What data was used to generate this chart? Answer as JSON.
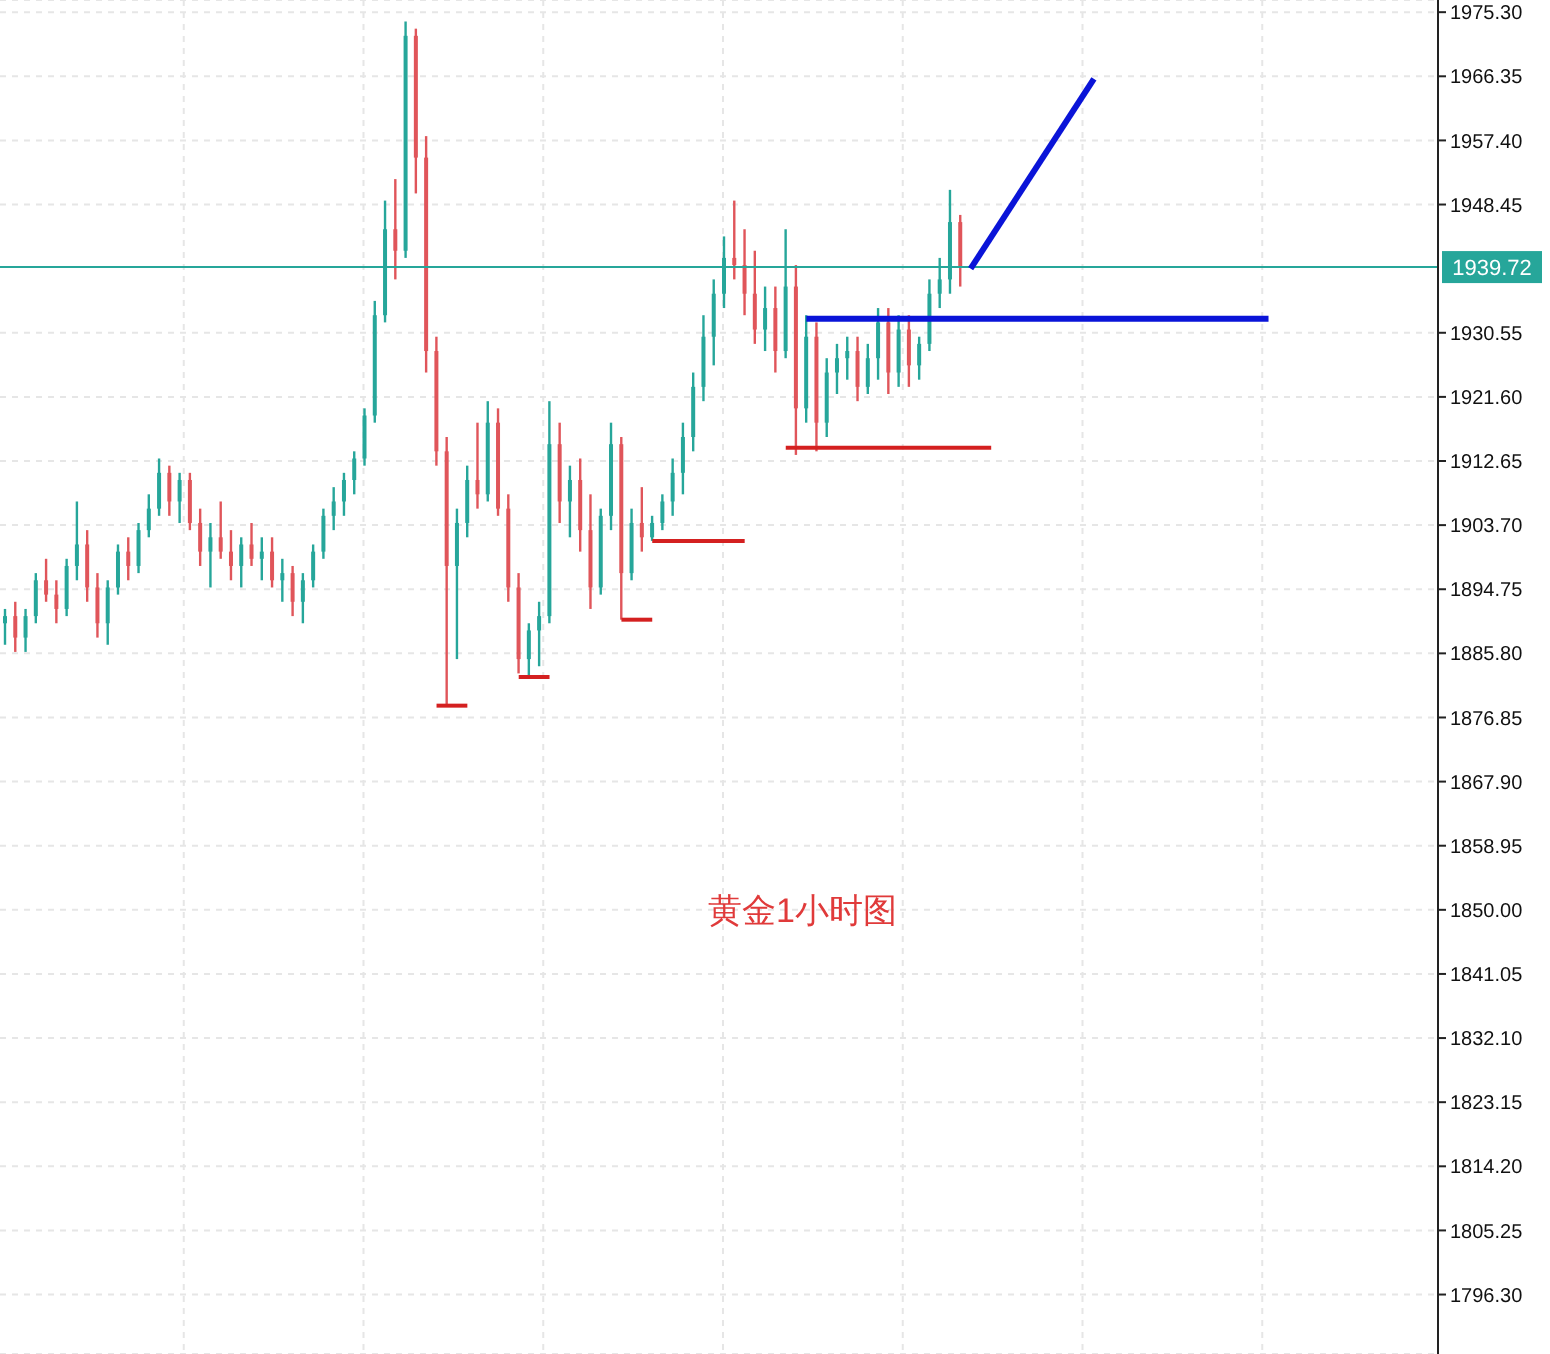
{
  "chart_data": {
    "type": "candlestick",
    "annotations": [
      "黄金1小时图"
    ],
    "categories": [
      null,
      null,
      null,
      null,
      null,
      null,
      null,
      null,
      null,
      null,
      null,
      null,
      null,
      null,
      null,
      null,
      null,
      null,
      null,
      null,
      null,
      null,
      null,
      null,
      null,
      null,
      null,
      null,
      null,
      null,
      null,
      null,
      null,
      null,
      null,
      null,
      null,
      null,
      null,
      null,
      null,
      null,
      null,
      null,
      null,
      null,
      null,
      null,
      null,
      null,
      null,
      null,
      null,
      null,
      null,
      null,
      null,
      null,
      null,
      null,
      null,
      null,
      null,
      null,
      null,
      null,
      null,
      null,
      null,
      null,
      null,
      null,
      null,
      null,
      null,
      null,
      null,
      null,
      null,
      null,
      null,
      null,
      null,
      null,
      null,
      null,
      null,
      null,
      null,
      null,
      null,
      null,
      null,
      null,
      null,
      null,
      null,
      null,
      null,
      null,
      null,
      null,
      null,
      null,
      null,
      null,
      null,
      null,
      null,
      null,
      null,
      null,
      null,
      null,
      null,
      null,
      null,
      null,
      null,
      null,
      null,
      null,
      null,
      null,
      null,
      null,
      null,
      null,
      null,
      null,
      null,
      null,
      null,
      null,
      null,
      null,
      null,
      null,
      null,
      null
    ],
    "ohlc": [
      [
        1890,
        1892,
        1887,
        1891
      ],
      [
        1891,
        1893,
        1886,
        1888
      ],
      [
        1888,
        1892,
        1886,
        1891
      ],
      [
        1891,
        1897,
        1890,
        1896
      ],
      [
        1896,
        1899,
        1893,
        1894
      ],
      [
        1894,
        1896,
        1890,
        1892
      ],
      [
        1892,
        1899,
        1891,
        1898
      ],
      [
        1898,
        1907,
        1896,
        1901
      ],
      [
        1901,
        1903,
        1893,
        1895
      ],
      [
        1895,
        1897,
        1888,
        1890
      ],
      [
        1890,
        1896,
        1887,
        1895
      ],
      [
        1895,
        1901,
        1894,
        1900
      ],
      [
        1900,
        1902,
        1896,
        1898
      ],
      [
        1898,
        1904,
        1897,
        1903
      ],
      [
        1903,
        1908,
        1902,
        1906
      ],
      [
        1906,
        1913,
        1905,
        1911
      ],
      [
        1911,
        1912,
        1905,
        1907
      ],
      [
        1907,
        1911,
        1904,
        1910
      ],
      [
        1910,
        1911,
        1903,
        1904
      ],
      [
        1904,
        1906,
        1898,
        1900
      ],
      [
        1900,
        1904,
        1895,
        1902
      ],
      [
        1902,
        1907,
        1899,
        1900
      ],
      [
        1900,
        1903,
        1896,
        1898
      ],
      [
        1898,
        1902,
        1895,
        1901
      ],
      [
        1901,
        1904,
        1898,
        1899
      ],
      [
        1899,
        1902,
        1896,
        1900
      ],
      [
        1900,
        1902,
        1895,
        1896
      ],
      [
        1896,
        1899,
        1893,
        1897
      ],
      [
        1897,
        1898,
        1891,
        1893
      ],
      [
        1893,
        1897,
        1890,
        1896
      ],
      [
        1896,
        1901,
        1895,
        1900
      ],
      [
        1900,
        1906,
        1899,
        1905
      ],
      [
        1905,
        1909,
        1903,
        1907
      ],
      [
        1907,
        1911,
        1905,
        1910
      ],
      [
        1910,
        1914,
        1908,
        1913
      ],
      [
        1913,
        1920,
        1912,
        1919
      ],
      [
        1919,
        1935,
        1918,
        1933
      ],
      [
        1933,
        1949,
        1932,
        1945
      ],
      [
        1945,
        1952,
        1938,
        1942
      ],
      [
        1942,
        1974,
        1941,
        1972
      ],
      [
        1972,
        1973,
        1950,
        1955
      ],
      [
        1955,
        1958,
        1925,
        1928
      ],
      [
        1928,
        1930,
        1912,
        1914
      ],
      [
        1914,
        1916,
        1878.5,
        1898
      ],
      [
        1898,
        1906,
        1885,
        1904
      ],
      [
        1904,
        1912,
        1902,
        1910
      ],
      [
        1910,
        1918,
        1906,
        1908
      ],
      [
        1908,
        1921,
        1907,
        1918
      ],
      [
        1918,
        1920,
        1905,
        1906
      ],
      [
        1906,
        1908,
        1893,
        1895
      ],
      [
        1895,
        1897,
        1883,
        1885
      ],
      [
        1885,
        1890,
        1882.5,
        1889
      ],
      [
        1889,
        1893,
        1884,
        1891
      ],
      [
        1891,
        1921,
        1890,
        1915
      ],
      [
        1915,
        1918,
        1904,
        1907
      ],
      [
        1907,
        1912,
        1902,
        1910
      ],
      [
        1910,
        1913,
        1900,
        1903
      ],
      [
        1903,
        1908,
        1892,
        1895
      ],
      [
        1895,
        1906,
        1894,
        1905
      ],
      [
        1905,
        1918,
        1903,
        1915
      ],
      [
        1915,
        1916,
        1890.5,
        1897
      ],
      [
        1897,
        1906,
        1896,
        1904
      ],
      [
        1904,
        1909,
        1900,
        1902
      ],
      [
        1902,
        1905,
        1901.5,
        1904
      ],
      [
        1904,
        1908,
        1903,
        1907
      ],
      [
        1907,
        1913,
        1905,
        1911
      ],
      [
        1911,
        1918,
        1908,
        1916
      ],
      [
        1916,
        1925,
        1914,
        1923
      ],
      [
        1923,
        1933,
        1921,
        1930
      ],
      [
        1930,
        1938,
        1926,
        1936
      ],
      [
        1936,
        1944,
        1934,
        1941
      ],
      [
        1941,
        1949,
        1938,
        1940
      ],
      [
        1940,
        1945,
        1933,
        1936
      ],
      [
        1936,
        1942,
        1929,
        1931
      ],
      [
        1931,
        1937,
        1928,
        1934
      ],
      [
        1934,
        1937,
        1925,
        1928
      ],
      [
        1928,
        1945,
        1927,
        1937
      ],
      [
        1937,
        1940,
        1913.5,
        1920
      ],
      [
        1920,
        1933,
        1918,
        1930
      ],
      [
        1930,
        1932,
        1914,
        1918
      ],
      [
        1918,
        1927,
        1916,
        1925
      ],
      [
        1925,
        1929,
        1922,
        1927
      ],
      [
        1927,
        1930,
        1924,
        1928
      ],
      [
        1928,
        1930,
        1921,
        1923
      ],
      [
        1923,
        1929,
        1922,
        1927
      ],
      [
        1927,
        1934,
        1924,
        1932
      ],
      [
        1932,
        1934,
        1922,
        1925
      ],
      [
        1925,
        1933,
        1923,
        1931
      ],
      [
        1931,
        1933,
        1923,
        1926
      ],
      [
        1926,
        1930,
        1924,
        1929
      ],
      [
        1929,
        1938,
        1928,
        1936
      ],
      [
        1936,
        1941,
        1934,
        1938
      ],
      [
        1938,
        1950.5,
        1936,
        1946
      ],
      [
        1946,
        1947,
        1937,
        1939.72
      ],
      null,
      null,
      null,
      null,
      null,
      null,
      null,
      null,
      null,
      null,
      null,
      null,
      null,
      null,
      null,
      null,
      null,
      null,
      null,
      null,
      null,
      null,
      null,
      null,
      null,
      null,
      null,
      null,
      null,
      null,
      null,
      null,
      null,
      null,
      null,
      null,
      null,
      null,
      null,
      null,
      null,
      null,
      null,
      null,
      null,
      null
    ],
    "series": [
      {
        "type": "line",
        "color": "#d42020",
        "values": [
          null,
          null,
          null,
          null,
          null,
          null,
          null,
          null,
          null,
          null,
          null,
          null,
          null,
          null,
          null,
          null,
          null,
          null,
          null,
          null,
          null,
          null,
          null,
          null,
          null,
          null,
          null,
          null,
          null,
          null,
          null,
          null,
          null,
          null,
          null,
          null,
          null,
          null,
          null,
          null,
          null,
          null,
          1878.5,
          1878.5,
          1878.5,
          1878.5,
          null,
          null,
          null,
          null,
          null,
          null,
          null,
          null,
          null,
          null,
          null,
          null,
          null,
          null,
          null,
          null,
          null,
          null,
          null,
          null,
          null,
          null,
          null,
          null,
          null,
          null,
          null,
          null,
          null,
          null,
          null,
          null,
          null,
          null,
          null,
          null,
          null,
          null,
          null,
          null,
          null,
          null,
          null,
          null,
          null,
          null,
          null,
          null,
          null,
          null,
          null,
          null,
          null,
          null,
          null,
          null,
          null,
          null,
          null,
          null,
          null,
          null,
          null,
          null,
          null,
          null,
          null,
          null,
          null,
          null,
          null,
          null,
          null,
          null,
          null,
          null,
          null,
          null,
          null,
          null,
          null,
          null,
          null,
          null,
          null,
          null,
          null,
          null,
          null,
          null,
          null,
          null,
          null,
          null
        ]
      },
      {
        "type": "line",
        "color": "#d42020",
        "values": [
          null,
          null,
          null,
          null,
          null,
          null,
          null,
          null,
          null,
          null,
          null,
          null,
          null,
          null,
          null,
          null,
          null,
          null,
          null,
          null,
          null,
          null,
          null,
          null,
          null,
          null,
          null,
          null,
          null,
          null,
          null,
          null,
          null,
          null,
          null,
          null,
          null,
          null,
          null,
          null,
          null,
          null,
          null,
          null,
          null,
          null,
          null,
          null,
          null,
          null,
          1882.5,
          1882.5,
          1882.5,
          1882.5,
          null,
          null,
          null,
          null,
          null,
          null,
          null,
          null,
          null,
          null,
          null,
          null,
          null,
          null,
          null,
          null,
          null,
          null,
          null,
          null,
          null,
          null,
          null,
          null,
          null,
          null,
          null,
          null,
          null,
          null,
          null,
          null,
          null,
          null,
          null,
          null,
          null,
          null,
          null,
          null,
          null,
          null,
          null,
          null,
          null,
          null,
          null,
          null,
          null,
          null,
          null,
          null,
          null,
          null,
          null,
          null,
          null,
          null,
          null,
          null,
          null,
          null,
          null,
          null,
          null,
          null,
          null,
          null,
          null,
          null,
          null,
          null,
          null,
          null,
          null,
          null,
          null,
          null,
          null,
          null,
          null,
          null,
          null,
          null,
          null,
          null
        ]
      },
      {
        "type": "line",
        "color": "#d42020",
        "values": [
          null,
          null,
          null,
          null,
          null,
          null,
          null,
          null,
          null,
          null,
          null,
          null,
          null,
          null,
          null,
          null,
          null,
          null,
          null,
          null,
          null,
          null,
          null,
          null,
          null,
          null,
          null,
          null,
          null,
          null,
          null,
          null,
          null,
          null,
          null,
          null,
          null,
          null,
          null,
          null,
          null,
          null,
          null,
          null,
          null,
          null,
          null,
          null,
          null,
          null,
          null,
          null,
          null,
          null,
          null,
          null,
          null,
          null,
          null,
          null,
          1890.5,
          1890.5,
          1890.5,
          1890.5,
          null,
          null,
          null,
          null,
          null,
          null,
          null,
          null,
          null,
          null,
          null,
          null,
          null,
          null,
          null,
          null,
          null,
          null,
          null,
          null,
          null,
          null,
          null,
          null,
          null,
          null,
          null,
          null,
          null,
          null,
          null,
          null,
          null,
          null,
          null,
          null,
          null,
          null,
          null,
          null,
          null,
          null,
          null,
          null,
          null,
          null,
          null,
          null,
          null,
          null,
          null,
          null,
          null,
          null,
          null,
          null,
          null,
          null,
          null,
          null,
          null,
          null,
          null,
          null,
          null,
          null,
          null,
          null,
          null,
          null,
          null,
          null,
          null,
          null,
          null,
          null
        ]
      },
      {
        "type": "line",
        "color": "#d42020",
        "values": [
          null,
          null,
          null,
          null,
          null,
          null,
          null,
          null,
          null,
          null,
          null,
          null,
          null,
          null,
          null,
          null,
          null,
          null,
          null,
          null,
          null,
          null,
          null,
          null,
          null,
          null,
          null,
          null,
          null,
          null,
          null,
          null,
          null,
          null,
          null,
          null,
          null,
          null,
          null,
          null,
          null,
          null,
          null,
          null,
          null,
          null,
          null,
          null,
          null,
          null,
          null,
          null,
          null,
          null,
          null,
          null,
          null,
          null,
          null,
          null,
          null,
          null,
          null,
          1901.5,
          1901.5,
          1901.5,
          1901.5,
          1901.5,
          1901.5,
          1901.5,
          1901.5,
          1901.5,
          1901.5,
          null,
          null,
          null,
          null,
          null,
          null,
          null,
          null,
          null,
          null,
          null,
          null,
          null,
          null,
          null,
          null,
          null,
          null,
          null,
          null,
          null,
          null,
          null,
          null,
          null,
          null,
          null,
          null,
          null,
          null,
          null,
          null,
          null,
          null,
          null,
          null,
          null,
          null,
          null,
          null,
          null,
          null,
          null,
          null,
          null,
          null,
          null,
          null,
          null,
          null,
          null,
          null,
          null,
          null,
          null,
          null,
          null,
          null,
          null,
          null,
          null,
          null,
          null,
          null,
          null,
          null,
          null
        ]
      },
      {
        "type": "line",
        "color": "#d42020",
        "values": [
          null,
          null,
          null,
          null,
          null,
          null,
          null,
          null,
          null,
          null,
          null,
          null,
          null,
          null,
          null,
          null,
          null,
          null,
          null,
          null,
          null,
          null,
          null,
          null,
          null,
          null,
          null,
          null,
          null,
          null,
          null,
          null,
          null,
          null,
          null,
          null,
          null,
          null,
          null,
          null,
          null,
          null,
          null,
          null,
          null,
          null,
          null,
          null,
          null,
          null,
          null,
          null,
          null,
          null,
          null,
          null,
          null,
          null,
          null,
          null,
          null,
          null,
          null,
          null,
          null,
          null,
          null,
          null,
          null,
          null,
          null,
          null,
          null,
          null,
          null,
          null,
          1914.5,
          1914.5,
          1914.5,
          1914.5,
          1914.5,
          1914.5,
          1914.5,
          1914.5,
          1914.5,
          1914.5,
          1914.5,
          1914.5,
          1914.5,
          1914.5,
          1914.5,
          1914.5,
          1914.5,
          1914.5,
          1914.5,
          1914.5,
          1914.5,
          null,
          null,
          null,
          null,
          null,
          null,
          null,
          null,
          null,
          null,
          null,
          null,
          null,
          null,
          null,
          null,
          null,
          null,
          null,
          null,
          null,
          null,
          null,
          null,
          null,
          null,
          null,
          null,
          null,
          null,
          null,
          null,
          null,
          null,
          null,
          null,
          null,
          null,
          null,
          null,
          null,
          null,
          null
        ]
      },
      {
        "type": "line",
        "color": "#0a14d8",
        "values": [
          null,
          null,
          null,
          null,
          null,
          null,
          null,
          null,
          null,
          null,
          null,
          null,
          null,
          null,
          null,
          null,
          null,
          null,
          null,
          null,
          null,
          null,
          null,
          null,
          null,
          null,
          null,
          null,
          null,
          null,
          null,
          null,
          null,
          null,
          null,
          null,
          null,
          null,
          null,
          null,
          null,
          null,
          null,
          null,
          null,
          null,
          null,
          null,
          null,
          null,
          null,
          null,
          null,
          null,
          null,
          null,
          null,
          null,
          null,
          null,
          null,
          null,
          null,
          null,
          null,
          null,
          null,
          null,
          null,
          null,
          null,
          null,
          null,
          null,
          null,
          null,
          null,
          null,
          1932.5,
          1932.5,
          1932.5,
          1932.5,
          1932.5,
          1932.5,
          1932.5,
          1932.5,
          1932.5,
          1932.5,
          1932.5,
          1932.5,
          1932.5,
          1932.5,
          1932.5,
          1932.5,
          1932.5,
          1932.5,
          1932.5,
          1932.5,
          1932.5,
          1932.5,
          1932.5,
          1932.5,
          1932.5,
          1932.5,
          1932.5,
          1932.5,
          1932.5,
          1932.5,
          1932.5,
          1932.5,
          1932.5,
          1932.5,
          1932.5,
          1932.5,
          1932.5,
          1932.5,
          1932.5,
          1932.5,
          1932.5,
          1932.5,
          1932.5,
          1932.5,
          1932.5,
          1932.5,
          null,
          null,
          null,
          null,
          null,
          null,
          null,
          null,
          null,
          null,
          null,
          null,
          null,
          null,
          null,
          null
        ]
      },
      {
        "type": "line",
        "color": "#0a14d8",
        "values": [
          null,
          null,
          null,
          null,
          null,
          null,
          null,
          null,
          null,
          null,
          null,
          null,
          null,
          null,
          null,
          null,
          null,
          null,
          null,
          null,
          null,
          null,
          null,
          null,
          null,
          null,
          null,
          null,
          null,
          null,
          null,
          null,
          null,
          null,
          null,
          null,
          null,
          null,
          null,
          null,
          null,
          null,
          null,
          null,
          null,
          null,
          null,
          null,
          null,
          null,
          null,
          null,
          null,
          null,
          null,
          null,
          null,
          null,
          null,
          null,
          null,
          null,
          null,
          null,
          null,
          null,
          null,
          null,
          null,
          null,
          null,
          null,
          null,
          null,
          null,
          null,
          null,
          null,
          null,
          null,
          null,
          null,
          null,
          null,
          null,
          null,
          null,
          null,
          null,
          null,
          null,
          null,
          null,
          null,
          1939.5,
          null,
          null,
          null,
          null,
          null,
          null,
          null,
          null,
          null,
          null,
          null,
          1966,
          null,
          null,
          null,
          null,
          null,
          null,
          null,
          null,
          null,
          null,
          null,
          null,
          null,
          null,
          null,
          null,
          null,
          null,
          null,
          null,
          null,
          null,
          null,
          null,
          null,
          null,
          null,
          null,
          null,
          null,
          null,
          null,
          null
        ]
      }
    ],
    "ylim": [
      1788,
      1977
    ],
    "yticks": [
      {
        "value": 1796.3,
        "label": "1796.30"
      },
      {
        "value": 1805.25,
        "label": "1805.25"
      },
      {
        "value": 1814.2,
        "label": "1814.20"
      },
      {
        "value": 1823.15,
        "label": "1823.15"
      },
      {
        "value": 1832.1,
        "label": "1832.10"
      },
      {
        "value": 1841.05,
        "label": "1841.05"
      },
      {
        "value": 1850,
        "label": "1850.00"
      },
      {
        "value": 1858.95,
        "label": "1858.95"
      },
      {
        "value": 1867.9,
        "label": "1867.90"
      },
      {
        "value": 1876.85,
        "label": "1876.85"
      },
      {
        "value": 1885.8,
        "label": "1885.80"
      },
      {
        "value": 1894.75,
        "label": "1894.75"
      },
      {
        "value": 1903.7,
        "label": "1903.70"
      },
      {
        "value": 1912.65,
        "label": "1912.65"
      },
      {
        "value": 1921.6,
        "label": "1921.60"
      },
      {
        "value": 1930.55,
        "label": "1930.55"
      },
      {
        "value": 1948.45,
        "label": "1948.45"
      },
      {
        "value": 1957.4,
        "label": "1957.40"
      },
      {
        "value": 1966.35,
        "label": "1966.35"
      },
      {
        "value": 1975.3,
        "label": "1975.30"
      }
    ],
    "ref_lines": [
      {
        "axis": "y",
        "value": 1939.72,
        "label": "1939.72",
        "color": "#26a69a"
      }
    ],
    "grid": true,
    "tick_labels": "y"
  }
}
